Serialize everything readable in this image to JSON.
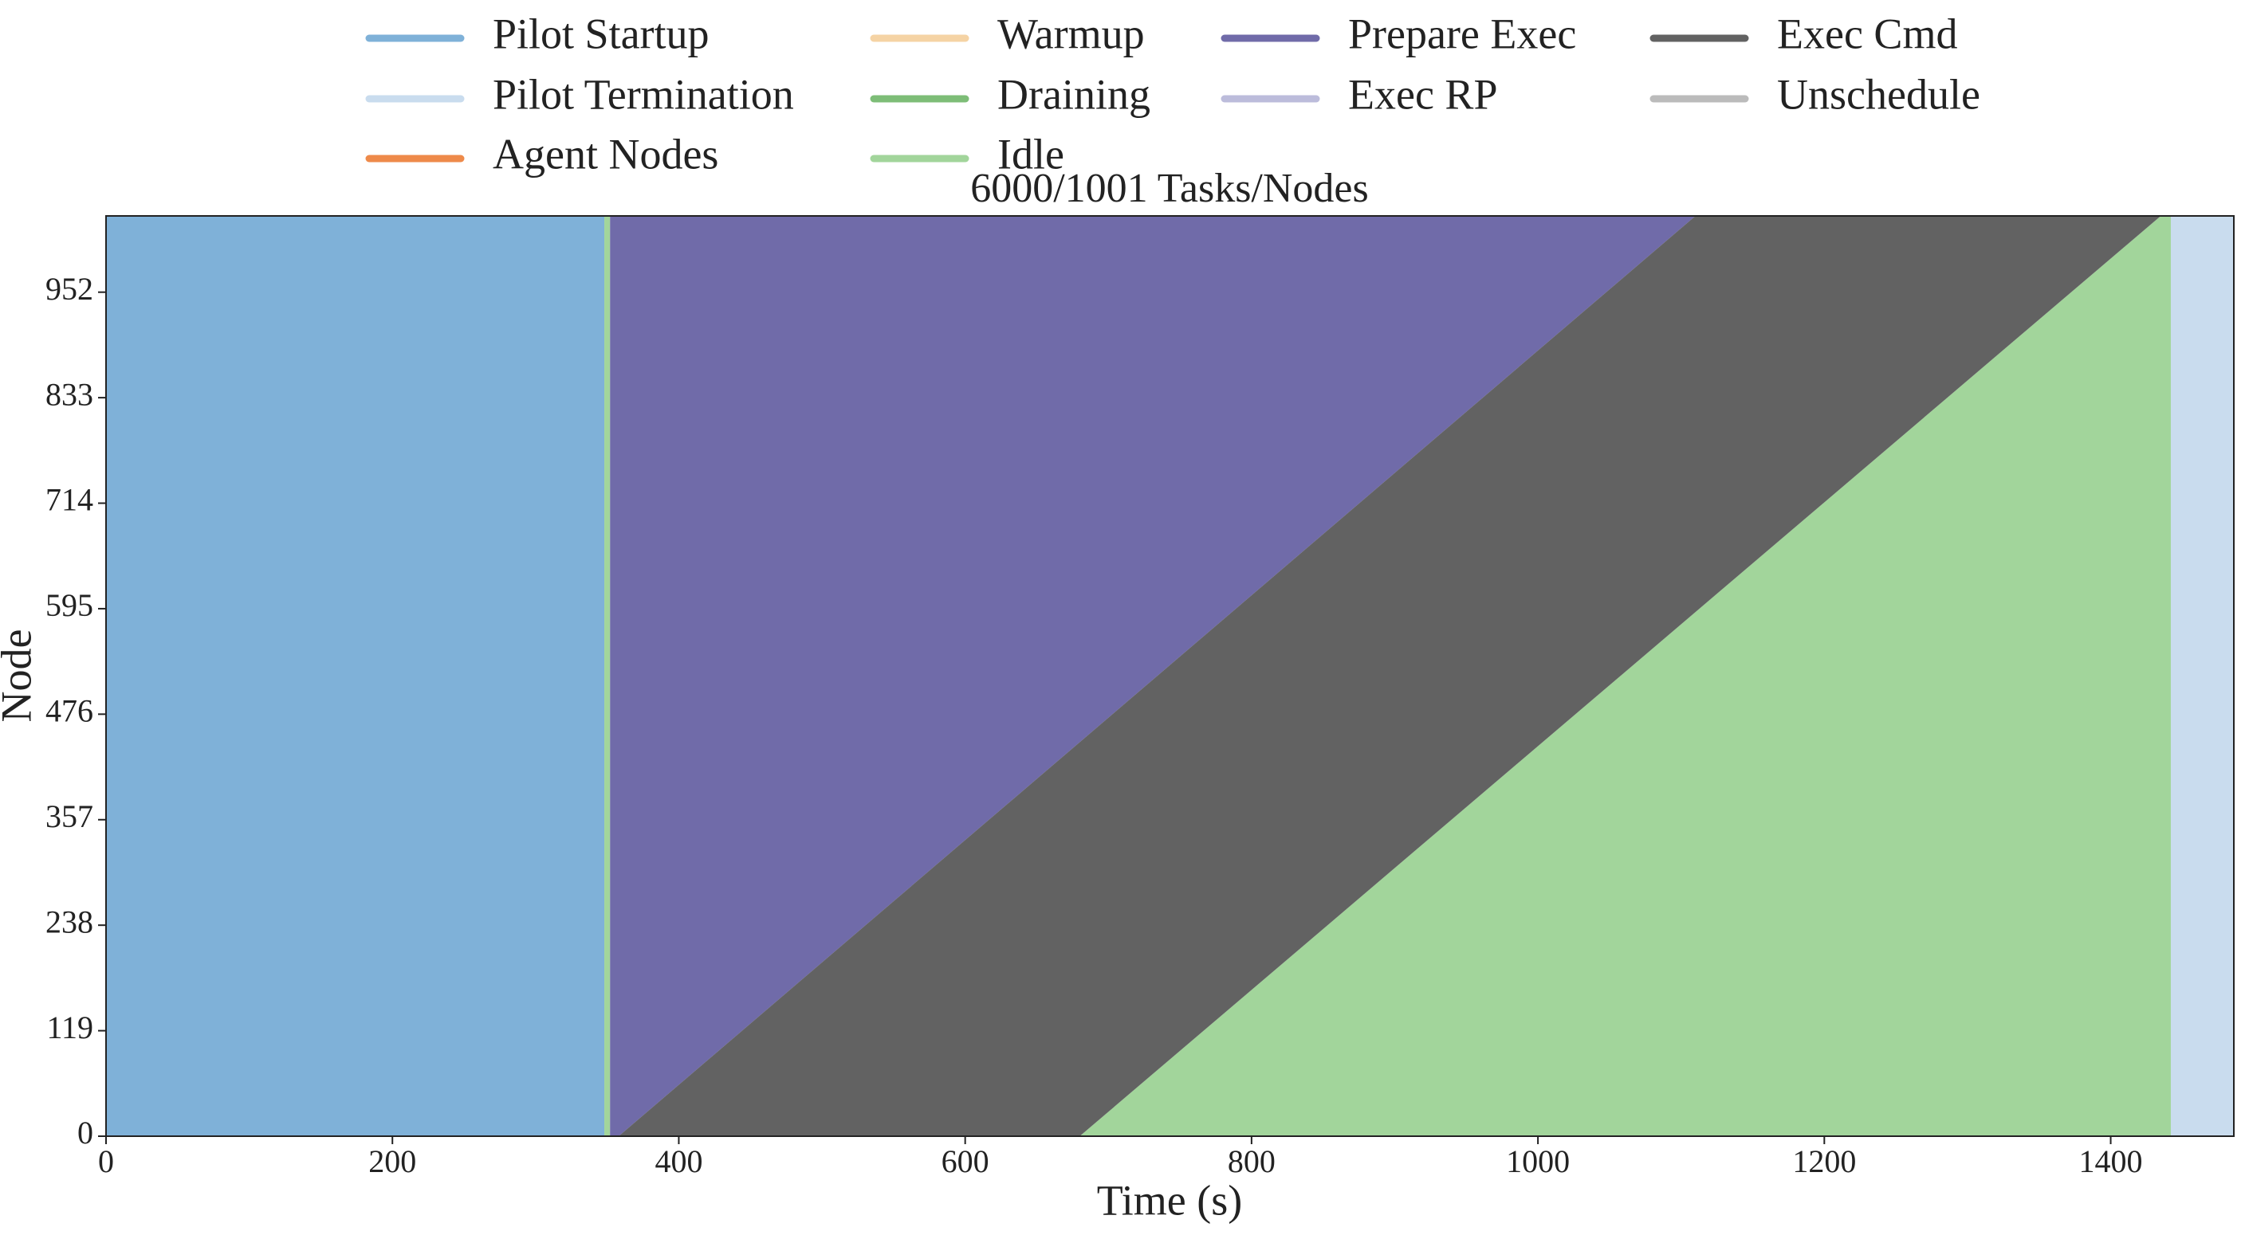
{
  "chart_data": {
    "type": "gantt",
    "title": "6000/1001 Tasks/Nodes",
    "x_label": "Time (s)",
    "y_label": "Node",
    "xlim": [
      0,
      1486
    ],
    "ylim": [
      0,
      1038
    ],
    "xticks": [
      0,
      200,
      400,
      600,
      800,
      1000,
      1200,
      1400
    ],
    "yticks": [
      0,
      119,
      238,
      357,
      476,
      595,
      714,
      833,
      952
    ],
    "nodes": [
      0,
      1038
    ],
    "series": [
      {
        "name": "Pilot Startup",
        "color": "#7fb1d8",
        "segments": [
          {
            "start": [
              0,
              0
            ],
            "end": [
              348,
              348
            ]
          }
        ]
      },
      {
        "name": "Pilot Termination",
        "color": "#c9dcee",
        "segments": [
          {
            "start": [
              1442,
              1442
            ],
            "end": [
              1486,
              1486
            ]
          }
        ]
      },
      {
        "name": "Agent Nodes",
        "color": "#ee8a4a",
        "segments": []
      },
      {
        "name": "Warmup",
        "color": "#f5d3a4",
        "segments": []
      },
      {
        "name": "Draining",
        "color": "#7dbd77",
        "segments": []
      },
      {
        "name": "Idle",
        "color": "#a2d59b",
        "segments": [
          {
            "start": [
              348,
              348
            ],
            "end": [
              352,
              352
            ]
          },
          {
            "start": [
              680,
              1435
            ],
            "end": [
              1442,
              1442
            ]
          }
        ]
      },
      {
        "name": "Prepare Exec",
        "color": "#706ba9",
        "segments": [
          {
            "start": [
              352,
              352
            ],
            "end": [
              358,
              1110
            ]
          }
        ]
      },
      {
        "name": "Exec RP",
        "color": "#bcbcdb",
        "segments": []
      },
      {
        "name": "Exec Cmd",
        "color": "#626262",
        "segments": [
          {
            "start": [
              358,
              1110
            ],
            "end": [
              680,
              1435
            ]
          }
        ]
      },
      {
        "name": "Unschedule",
        "color": "#bbbbbb",
        "segments": []
      }
    ]
  }
}
